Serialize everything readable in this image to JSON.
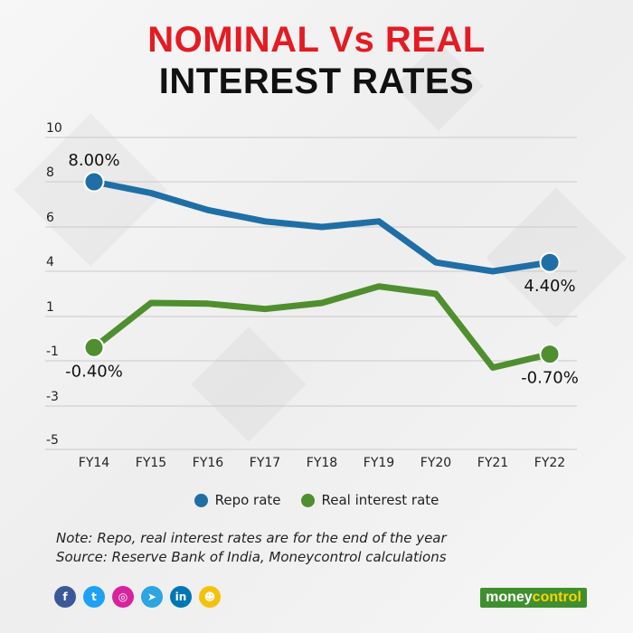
{
  "header": {
    "title_line1": "NOMINAL Vs REAL",
    "title_line2": "INTEREST RATES"
  },
  "chart_data": {
    "type": "line",
    "categories": [
      "FY14",
      "FY15",
      "FY16",
      "FY17",
      "FY18",
      "FY19",
      "FY20",
      "FY21",
      "FY22"
    ],
    "y_ticks": [
      "10",
      "8",
      "6",
      "4",
      "1",
      "-1",
      "-3",
      "-5"
    ],
    "series": [
      {
        "name": "Repo rate",
        "color": "#1f6fa6",
        "values": [
          8.0,
          7.5,
          6.75,
          6.25,
          6.0,
          6.25,
          4.4,
          4.0,
          4.4
        ]
      },
      {
        "name": "Real interest rate",
        "color": "#4f8f2f",
        "values": [
          -0.4,
          1.9,
          1.85,
          1.5,
          1.9,
          3.0,
          2.5,
          -1.3,
          -0.7
        ]
      }
    ],
    "point_labels": [
      {
        "series": 0,
        "index": 0,
        "text": "8.00%",
        "pos": "above"
      },
      {
        "series": 0,
        "index": 8,
        "text": "4.40%",
        "pos": "below"
      },
      {
        "series": 1,
        "index": 0,
        "text": "-0.40%",
        "pos": "below"
      },
      {
        "series": 1,
        "index": 8,
        "text": "-0.70%",
        "pos": "below"
      }
    ],
    "grid": true,
    "legend_position": "bottom"
  },
  "legend": [
    {
      "label": "Repo rate",
      "color": "#1f6fa6"
    },
    {
      "label": "Real interest rate",
      "color": "#4f8f2f"
    }
  ],
  "notes": {
    "line1": "Note: Repo, real interest rates are for the end of   the year",
    "line2": "Source: Reserve Bank of India, Moneycontrol calculations"
  },
  "social_icons": [
    {
      "name": "facebook-icon",
      "glyph": "f",
      "color": "#3b5998"
    },
    {
      "name": "twitter-icon",
      "glyph": "t",
      "color": "#1da1f2"
    },
    {
      "name": "instagram-icon",
      "glyph": "◎",
      "color": "#d6249f"
    },
    {
      "name": "telegram-icon",
      "glyph": "➤",
      "color": "#2ca5e0"
    },
    {
      "name": "linkedin-icon",
      "glyph": "in",
      "color": "#0077b5"
    },
    {
      "name": "koo-icon",
      "glyph": "☻",
      "color": "#f4c20d"
    }
  ],
  "brand": {
    "money": "money",
    "control": "control"
  }
}
